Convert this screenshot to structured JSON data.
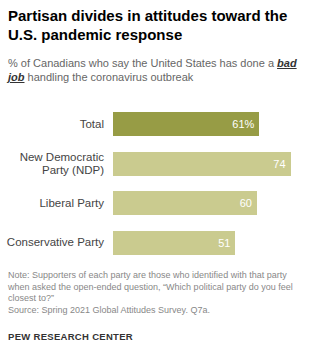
{
  "chart_data": {
    "type": "bar",
    "orientation": "horizontal",
    "title": "Partisan divides in attitudes toward the U.S. pandemic response",
    "subtitle": [
      "% of Canadians who say the United States has done a ",
      "bad job",
      " handling the coronavirus outbreak"
    ],
    "categories": [
      "Total",
      "New Democratic Party (NDP)",
      "Liberal Party",
      "Conservative Party"
    ],
    "values": [
      61,
      74,
      60,
      51
    ],
    "value_labels": [
      "61%",
      "74",
      "60",
      "51"
    ],
    "colors": [
      "#979c45",
      "#cacb8f",
      "#cacb8f",
      "#cacb8f"
    ],
    "xlim": [
      0,
      80
    ],
    "tick_labels": false,
    "grid": false,
    "data_labels": true,
    "note": "Note: Supporters of each party are those who identified with that party when asked the open-ended question, “Which political party do you feel closest to?”",
    "source": "Source: Spring 2021 Global Attitudes Survey. Q7a.",
    "credit": "PEW RESEARCH CENTER"
  }
}
